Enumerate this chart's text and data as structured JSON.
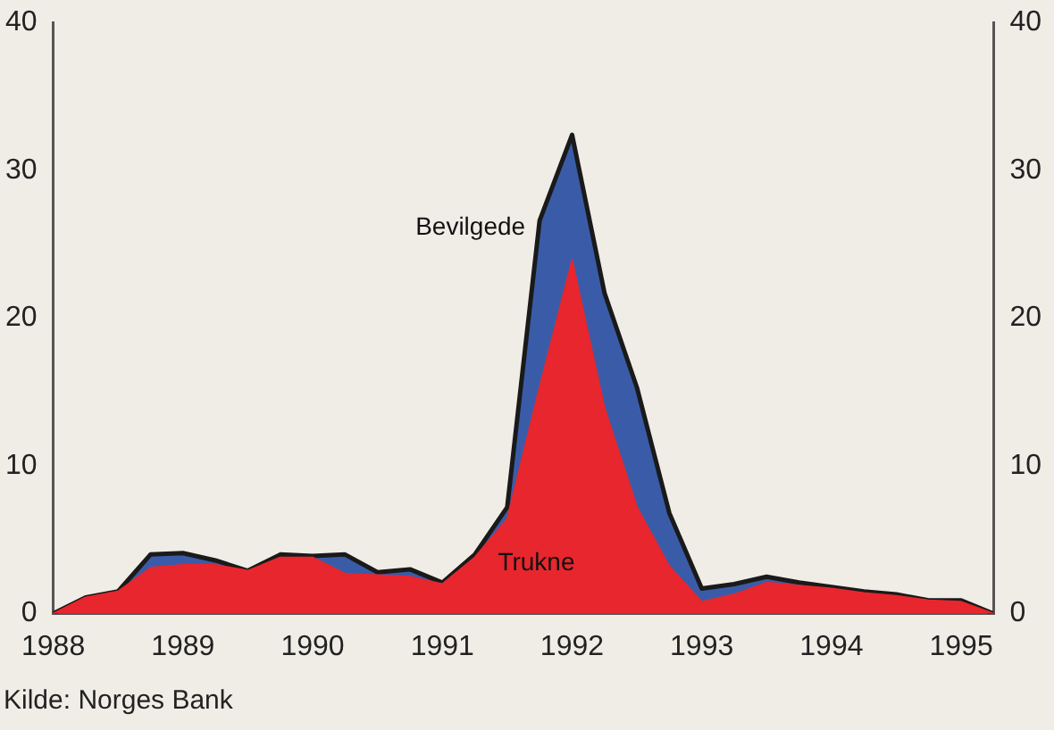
{
  "chart_data": {
    "type": "area",
    "x": [
      1988,
      1988.25,
      1988.5,
      1988.75,
      1989,
      1989.25,
      1989.5,
      1989.75,
      1990,
      1990.25,
      1990.5,
      1990.75,
      1991,
      1991.25,
      1991.5,
      1991.75,
      1992,
      1992.25,
      1992.5,
      1992.75,
      1993,
      1993.25,
      1993.5,
      1993.75,
      1994,
      1994.25,
      1994.5,
      1994.75,
      1995,
      1995.25
    ],
    "xlim": [
      1988,
      1995.25
    ],
    "xticks": [
      1988,
      1989,
      1990,
      1991,
      1992,
      1993,
      1994,
      1995
    ],
    "ylim": [
      0,
      40
    ],
    "yticks": [
      0,
      10,
      20,
      30,
      40
    ],
    "y2lim": [
      0,
      40
    ],
    "y2ticks": [
      0,
      10,
      20,
      30,
      40
    ],
    "series": [
      {
        "name": "Bevilgede",
        "color": "#3a5ca8",
        "values": [
          0,
          1.1,
          1.5,
          4.0,
          4.1,
          3.6,
          2.9,
          4.0,
          3.9,
          4.0,
          2.8,
          3.0,
          2.1,
          4.0,
          7.2,
          26.6,
          32.4,
          21.7,
          15.3,
          6.8,
          1.7,
          2.0,
          2.5,
          2.1,
          1.8,
          1.5,
          1.3,
          0.9,
          0.9,
          0
        ]
      },
      {
        "name": "Trukne",
        "color": "#e8262d",
        "values": [
          0,
          1.1,
          1.5,
          3.1,
          3.3,
          3.3,
          2.9,
          3.8,
          3.8,
          2.7,
          2.6,
          2.5,
          2.0,
          3.8,
          6.4,
          15.3,
          23.9,
          13.9,
          7.2,
          3.2,
          0.8,
          1.3,
          2.1,
          1.9,
          1.7,
          1.4,
          1.2,
          0.9,
          0.8,
          0
        ]
      }
    ],
    "annotations": [
      "Kilde: Norges Bank"
    ]
  }
}
